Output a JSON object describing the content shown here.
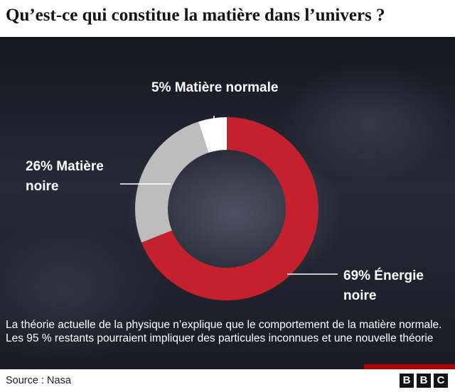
{
  "title": "Qu’est-ce qui constitue la matière dans l’univers ?",
  "chart_data": {
    "type": "pie",
    "slices": [
      {
        "name": "Énergie noire",
        "value": 69,
        "color": "#c5202e",
        "label_lines": [
          "69% Énergie",
          "noire"
        ]
      },
      {
        "name": "Matière noire",
        "value": 26,
        "color": "#bdbdbd",
        "label_lines": [
          "26% Matière",
          "noire"
        ]
      },
      {
        "name": "Matière normale",
        "value": 5,
        "color": "#ffffff",
        "label_lines": [
          "5% Matière normale"
        ]
      }
    ]
  },
  "note": "La théorie actuelle de la physique n’explique que le comportement de la matière normale. Les 95 % restants pourraient impliquer des particules inconnues et une nouvelle théorie",
  "source": "Source : Nasa",
  "logo": [
    "B",
    "B",
    "C"
  ]
}
